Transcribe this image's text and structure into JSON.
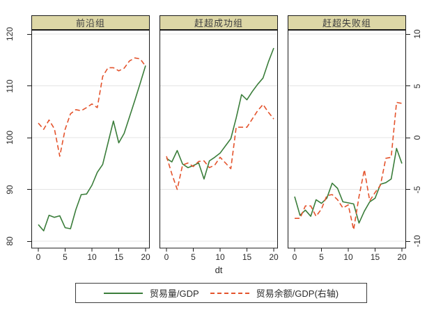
{
  "colors": {
    "series_green": "#3a7d3a",
    "series_red": "#e4532c",
    "panel_title_bg": "#ddd7a6",
    "grid": "#e4e4e4",
    "border": "#1a1a1a"
  },
  "chart_data": {
    "type": "line",
    "layout": "three-panel small multiples, shared left axis (80-120) and right axis (-10 to 10), light horizontal gridlines",
    "xlabel": "dt",
    "x": [
      0,
      1,
      2,
      3,
      4,
      5,
      6,
      7,
      8,
      9,
      10,
      11,
      12,
      13,
      14,
      15,
      16,
      17,
      18,
      19,
      20
    ],
    "x_ticks": [
      0,
      5,
      10,
      15,
      20
    ],
    "left_axis": {
      "range": [
        80,
        120
      ],
      "ticks": [
        120,
        110,
        100,
        90,
        80
      ]
    },
    "right_axis": {
      "range": [
        -10,
        10
      ],
      "ticks": [
        10,
        5,
        0,
        -5,
        -10
      ]
    },
    "panels": [
      {
        "title": "前沿组",
        "trade_volume_gdp_left_axis": [
          83.2,
          82.0,
          85.0,
          84.6,
          84.9,
          82.6,
          82.4,
          86.1,
          89.0,
          89.1,
          90.8,
          93.3,
          94.8,
          99.0,
          103.2,
          99.0,
          100.8,
          104.0,
          107.2,
          110.5,
          113.9
        ],
        "trade_balance_gdp_right_axis": [
          1.4,
          0.8,
          1.7,
          0.85,
          -1.8,
          0.8,
          2.3,
          2.7,
          2.6,
          2.9,
          3.25,
          2.9,
          5.9,
          6.75,
          6.75,
          6.45,
          6.7,
          7.4,
          7.7,
          7.6,
          6.9
        ]
      },
      {
        "title": "赶超成功组",
        "trade_volume_gdp_left_axis": [
          96.0,
          95.3,
          97.5,
          94.9,
          94.2,
          94.6,
          95.1,
          92.0,
          95.5,
          96.2,
          97.0,
          98.4,
          99.8,
          103.8,
          108.3,
          107.3,
          108.9,
          110.3,
          111.5,
          114.6,
          117.3
        ],
        "trade_balance_gdp_right_axis": [
          -1.8,
          -3.5,
          -5.0,
          -2.65,
          -2.45,
          -2.8,
          -2.3,
          -2.25,
          -2.9,
          -2.65,
          -1.9,
          -2.45,
          -3.0,
          1.0,
          1.0,
          1.0,
          1.8,
          2.6,
          3.2,
          2.45,
          1.8
        ]
      },
      {
        "title": "赶超失败组",
        "trade_volume_gdp_left_axis": [
          88.6,
          85.0,
          86.0,
          84.8,
          88.0,
          87.3,
          88.3,
          91.2,
          90.2,
          87.6,
          87.4,
          87.2,
          83.5,
          85.8,
          87.6,
          88.3,
          91.0,
          91.3,
          92.0,
          97.9,
          95.0
        ],
        "trade_balance_gdp_right_axis": [
          -7.8,
          -7.8,
          -6.6,
          -6.6,
          -7.6,
          -6.9,
          -5.6,
          -5.5,
          -6.0,
          -6.8,
          -6.5,
          -8.9,
          -5.7,
          -3.1,
          -6.1,
          -5.3,
          -4.6,
          -2.0,
          -1.9,
          3.4,
          3.3
        ]
      }
    ],
    "legend": [
      {
        "label": "贸易量/GDP",
        "style": "solid",
        "color": "#3a7d3a"
      },
      {
        "label": "贸易余额/GDP(右轴)",
        "style": "dashed",
        "color": "#e4532c"
      }
    ]
  }
}
